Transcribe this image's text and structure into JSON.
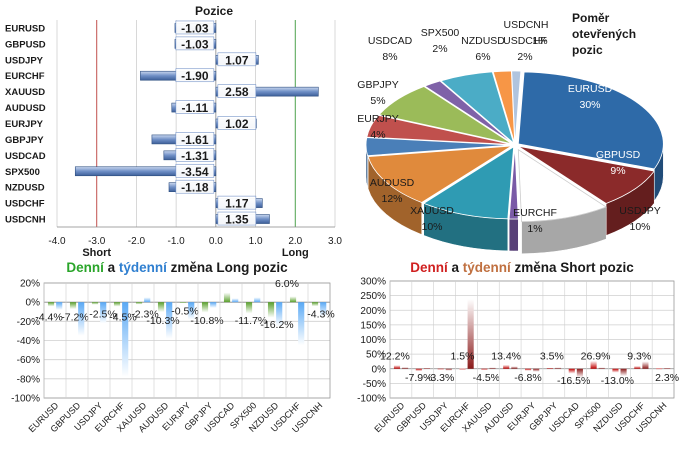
{
  "chart_data": [
    {
      "type": "bar",
      "orientation": "horizontal",
      "title": "Pozice",
      "categories": [
        "EURUSD",
        "GBPUSD",
        "USDJPY",
        "EURCHF",
        "XAUUSD",
        "AUDUSD",
        "EURJPY",
        "GBPJPY",
        "USDCAD",
        "SPX500",
        "NZDUSD",
        "USDCHF",
        "USDCNH"
      ],
      "values": [
        -1.03,
        -1.03,
        1.07,
        -1.9,
        2.58,
        -1.11,
        1.02,
        -1.61,
        -1.31,
        -3.54,
        -1.18,
        1.17,
        1.35
      ],
      "value_labels": [
        "-1.03",
        "-1.03",
        "1.07",
        "-1.90",
        "2.58",
        "-1.11",
        "1.02",
        "-1.61",
        "-1.31",
        "-3.54",
        "-1.18",
        "1.17",
        "1.35"
      ],
      "xlim": [
        -4.0,
        3.0
      ],
      "xticks": [
        "-4.0",
        "-3.0",
        "-2.0",
        "-1.0",
        "0.0",
        "1.0",
        "2.0",
        "3.0"
      ],
      "annotations": {
        "short": "Short",
        "long": "Long"
      },
      "colors": {
        "bar": "#6f8fc6",
        "short_line": "#c0504d",
        "long_line": "#4ea24e"
      }
    },
    {
      "type": "pie",
      "title": "Poměr otevřených pozic",
      "title_lines": [
        "Poměr",
        "otevřených",
        "pozic"
      ],
      "slices": [
        {
          "name": "EURUSD",
          "value": 30,
          "label": "30%",
          "color": "#2e6aa8"
        },
        {
          "name": "GBPUSD",
          "value": 9,
          "label": "9%",
          "color": "#8b2a2a"
        },
        {
          "name": "USDJPY",
          "value": 10,
          "label": "10%",
          "color": "#ffffff"
        },
        {
          "name": "EURCHF",
          "value": 1,
          "label": "1%",
          "color": "#7a5aa6"
        },
        {
          "name": "XAUUSD",
          "value": 10,
          "label": "10%",
          "color": "#2f9bb3"
        },
        {
          "name": "AUDUSD",
          "value": 12,
          "label": "12%",
          "color": "#e08a3c"
        },
        {
          "name": "EURJPY",
          "value": 4,
          "label": "4%",
          "color": "#4a7fb8"
        },
        {
          "name": "GBPJPY",
          "value": 5,
          "label": "5%",
          "color": "#c0504d"
        },
        {
          "name": "USDCAD",
          "value": 8,
          "label": "8%",
          "color": "#9bbb59"
        },
        {
          "name": "SPX500",
          "value": 2,
          "label": "2%",
          "color": "#7f62a8"
        },
        {
          "name": "NZDUSD",
          "value": 6,
          "label": "6%",
          "color": "#4bacc6"
        },
        {
          "name": "USDCHF",
          "value": 2,
          "label": "2%",
          "color": "#f79646"
        },
        {
          "name": "USDCNH",
          "value": 1,
          "label": "1%",
          "color": "#b0c4de"
        }
      ]
    },
    {
      "type": "bar",
      "title_parts": [
        "Denní",
        " a ",
        "týdenní",
        " změna Long pozic"
      ],
      "title_colors": [
        "#2aa52a",
        "#1a1a1a",
        "#2f7fd0",
        "#1a1a1a"
      ],
      "categories": [
        "EURUSD",
        "GBPUSD",
        "USDJPY",
        "EURCHF",
        "XAUUSD",
        "AUDUSD",
        "EURJPY",
        "GBPJPY",
        "USDCAD",
        "SPX500",
        "NZDUSD",
        "USDCHF",
        "USDCNH"
      ],
      "series": [
        {
          "values": [
            -4.4,
            -7.2,
            -2.5,
            -4.5,
            -2.3,
            -10.3,
            -0.5,
            -10.8,
            10,
            -11.7,
            -16.2,
            6.0,
            -4.3
          ],
          "color": "#5aa02c"
        },
        {
          "values": [
            -8,
            -35,
            -22,
            -78,
            5,
            -38,
            -18,
            -6,
            4,
            5,
            -25,
            -45,
            -15
          ],
          "color": "#5aa9f5"
        }
      ],
      "data_labels": [
        "-4.4%",
        "-7.2%",
        "-2.5%",
        "-4.5%",
        "-2.3%",
        "-10.3%",
        "-0.5%",
        "-10.8%",
        "",
        "-11.7%",
        "-16.2%",
        "6.0%",
        "-4.3%"
      ],
      "ylim": [
        -100,
        20
      ],
      "yticks": [
        "20%",
        "0%",
        "-20%",
        "-40%",
        "-60%",
        "-80%",
        "-100%"
      ]
    },
    {
      "type": "bar",
      "title_parts": [
        "Denní",
        " a ",
        "týdenní",
        " změna Short pozic"
      ],
      "title_colors": [
        "#d02020",
        "#1a1a1a",
        "#c07040",
        "#1a1a1a"
      ],
      "categories": [
        "EURUSD",
        "GBPUSD",
        "USDJPY",
        "EURCHF",
        "XAUUSD",
        "AUDUSD",
        "EURJPY",
        "GBPJPY",
        "USDCAD",
        "SPX500",
        "NZDUSD",
        "USDCHF",
        "USDCNH"
      ],
      "series": [
        {
          "values": [
            12.2,
            -7.9,
            -3.3,
            1.5,
            -4.5,
            13.4,
            -6.8,
            3.5,
            -16.5,
            26.9,
            -13.0,
            9.3,
            2.3
          ],
          "color": "#c00000"
        },
        {
          "values": [
            5,
            3,
            -6,
            238,
            4,
            8,
            -10,
            4,
            -30,
            4,
            -25,
            25,
            3
          ],
          "color": "#8b1a1a"
        }
      ],
      "data_labels": [
        "12.2%",
        "-7.9%",
        "-3.3%",
        "1.5%",
        "-4.5%",
        "13.4%",
        "-6.8%",
        "3.5%",
        "-16.5%",
        "26.9%",
        "-13.0%",
        "9.3%",
        "2.3%"
      ],
      "ylim": [
        -100,
        300
      ],
      "yticks": [
        "300%",
        "250%",
        "200%",
        "150%",
        "100%",
        "50%",
        "0%",
        "-50%",
        "-100%"
      ]
    }
  ]
}
